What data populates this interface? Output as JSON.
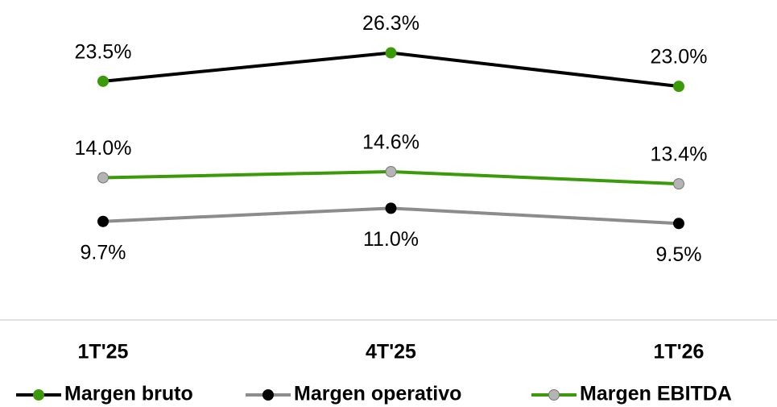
{
  "chart_data": {
    "type": "line",
    "categories": [
      "1T'25",
      "4T'25",
      "1T'26"
    ],
    "ylim": [
      0,
      31.5
    ],
    "series": [
      {
        "name": "Margen bruto",
        "color": "#000000",
        "marker_color": "#3a9a0a",
        "label_position": "above",
        "values": [
          23.5,
          26.3,
          23.0
        ],
        "value_labels": [
          "23.5%",
          "26.3%",
          "23.0%"
        ]
      },
      {
        "name": "Margen operativo",
        "color": "#8c8c8c",
        "marker_color": "#000000",
        "label_position": "below",
        "values": [
          9.7,
          11.0,
          9.5
        ],
        "value_labels": [
          "9.7%",
          "11.0%",
          "9.5%"
        ]
      },
      {
        "name": "Margen EBITDA",
        "color": "#3a9a0a",
        "marker_color": "#b4b4b4",
        "label_position": "above",
        "values": [
          14.0,
          14.6,
          13.4
        ],
        "value_labels": [
          "14.0%",
          "14.6%",
          "13.4%"
        ]
      }
    ],
    "legend": "bottom"
  }
}
